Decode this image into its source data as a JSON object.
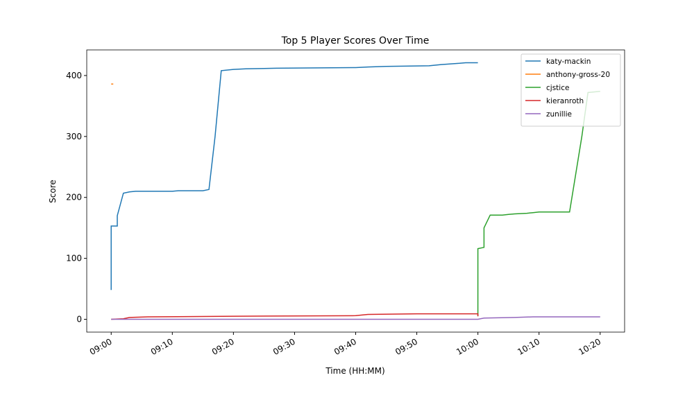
{
  "chart_data": {
    "type": "line",
    "title": "Top 5 Player Scores Over Time",
    "x_label": "Time (HH:MM)",
    "y_label": "Score",
    "xlim": [
      "08:56",
      "10:24"
    ],
    "xticks": [
      "09:00",
      "09:10",
      "09:20",
      "09:30",
      "09:40",
      "09:50",
      "10:00",
      "10:10",
      "10:20"
    ],
    "ylim": [
      -21,
      442
    ],
    "yticks": [
      0,
      100,
      200,
      300,
      400
    ],
    "legend": "upper right",
    "series": [
      {
        "name": "katy-mackin",
        "color": "#1f77b4",
        "x": [
          "09:00",
          "09:00",
          "09:01",
          "09:01",
          "09:02",
          "09:03",
          "09:04",
          "09:10",
          "09:11",
          "09:15",
          "09:16",
          "09:17",
          "09:18",
          "09:20",
          "09:22",
          "09:27",
          "09:40",
          "09:42",
          "09:45",
          "09:52",
          "09:54",
          "09:57",
          "09:58",
          "10:00"
        ],
        "values": [
          48,
          153,
          153,
          170,
          207,
          209,
          210,
          210,
          211,
          211,
          213,
          300,
          408,
          410,
          411,
          412,
          413,
          414,
          415,
          416,
          418,
          420,
          421,
          421
        ]
      },
      {
        "name": "anthony-gross-20",
        "color": "#ff7f0e",
        "x": [
          "09:00"
        ],
        "values": [
          386
        ]
      },
      {
        "name": "cjstice",
        "color": "#2ca02c",
        "x": [
          "10:00",
          "10:00",
          "10:01",
          "10:01",
          "10:02",
          "10:04",
          "10:05",
          "10:06",
          "10:08",
          "10:09",
          "10:10",
          "10:15",
          "10:17",
          "10:18",
          "10:20"
        ],
        "values": [
          5,
          116,
          118,
          150,
          171,
          171,
          172,
          173,
          174,
          175,
          176,
          176,
          300,
          372,
          374
        ]
      },
      {
        "name": "kieranroth",
        "color": "#d62728",
        "x": [
          "09:00",
          "09:02",
          "09:03",
          "09:06",
          "09:20",
          "09:40",
          "09:42",
          "09:50",
          "10:00",
          "10:00"
        ],
        "values": [
          0,
          1,
          3,
          4,
          5,
          6,
          8,
          9,
          9,
          5
        ]
      },
      {
        "name": "zunillie",
        "color": "#9467bd",
        "x": [
          "09:00",
          "10:00",
          "10:01",
          "10:06",
          "10:09",
          "10:20"
        ],
        "values": [
          0,
          0,
          2,
          3,
          4,
          4
        ]
      }
    ]
  }
}
